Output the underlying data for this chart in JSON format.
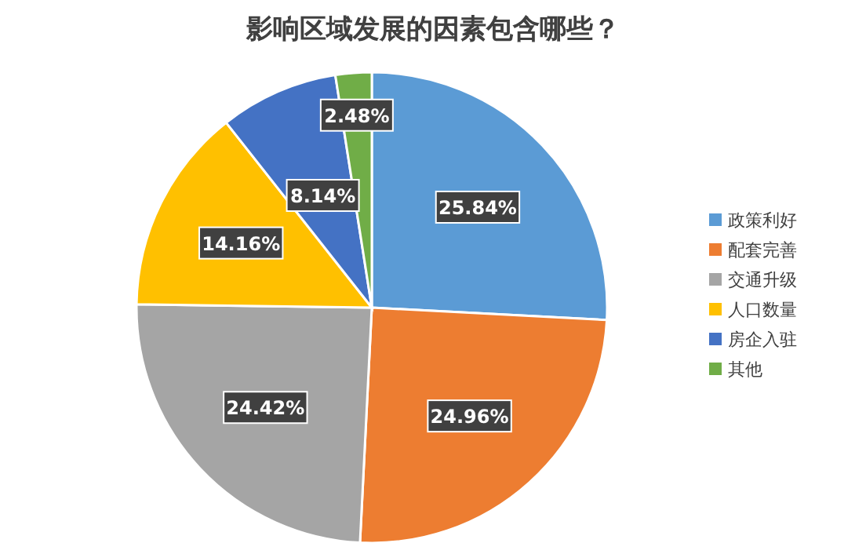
{
  "chart_data": {
    "type": "pie",
    "title": "影响区域发展的因素包含哪些？",
    "categories": [
      "政策利好",
      "配套完善",
      "交通升级",
      "人口数量",
      "房企入驻",
      "其他"
    ],
    "values": [
      25.84,
      24.96,
      24.42,
      14.16,
      8.14,
      2.48
    ],
    "colors": [
      "#5b9bd5",
      "#ed7d31",
      "#a5a5a5",
      "#ffc000",
      "#4472c4",
      "#70ad47"
    ],
    "value_labels": [
      "25.84%",
      "24.96%",
      "24.42%",
      "14.16%",
      "8.14%",
      "2.48%"
    ],
    "legend": "right"
  }
}
